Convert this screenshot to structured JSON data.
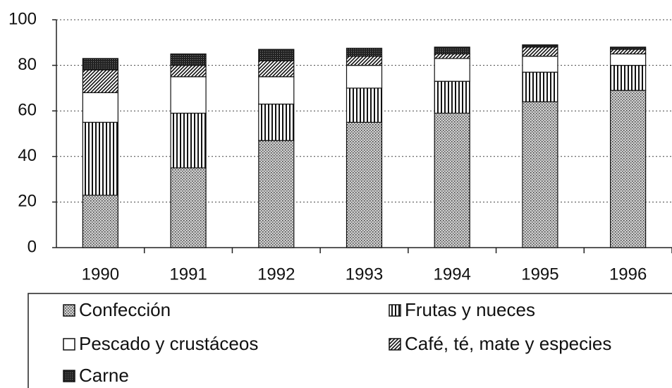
{
  "chart_data": {
    "type": "stacked_bar",
    "categories": [
      "1990",
      "1991",
      "1992",
      "1993",
      "1994",
      "1995",
      "1996"
    ],
    "series": [
      {
        "name": "Confección",
        "color": "#b0b0b0",
        "pattern": "dots",
        "values": [
          23,
          35,
          47,
          55,
          59,
          64,
          69
        ]
      },
      {
        "name": "Frutas y nueces",
        "color": "#000000",
        "pattern": "vertical",
        "values": [
          32,
          24,
          16,
          15,
          14,
          13,
          11
        ]
      },
      {
        "name": "Pescado y crustáceos",
        "color": "#ffffff",
        "pattern": "none",
        "values": [
          13,
          16,
          12,
          10,
          10,
          7,
          5
        ]
      },
      {
        "name": "Café, té, mate y especies",
        "color": "#000000",
        "pattern": "diagonal",
        "values": [
          10,
          5,
          7,
          4,
          2,
          4,
          2
        ]
      },
      {
        "name": "Carne",
        "color": "#222222",
        "pattern": "dense",
        "values": [
          5,
          5,
          5,
          3.5,
          3,
          1,
          1
        ]
      }
    ],
    "ylim": [
      0,
      100
    ],
    "yticks": [
      0,
      20,
      40,
      60,
      80,
      100
    ],
    "grid": true,
    "legend": "bottom"
  }
}
